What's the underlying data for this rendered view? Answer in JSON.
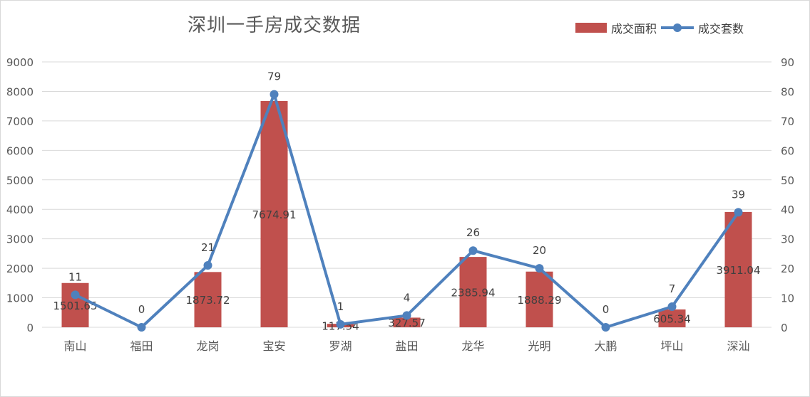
{
  "chart_data": {
    "type": "bar+line",
    "title": "深圳一手房成交数据",
    "categories": [
      "南山",
      "福田",
      "龙岗",
      "宝安",
      "罗湖",
      "盐田",
      "龙华",
      "光明",
      "大鹏",
      "坪山",
      "深汕"
    ],
    "series": [
      {
        "name": "成交面积",
        "type": "bar",
        "axis": "left",
        "color": "#c0504d",
        "values": [
          1501.65,
          0,
          1873.72,
          7674.91,
          117.54,
          327.57,
          2385.94,
          1888.29,
          0,
          605.34,
          3911.04
        ],
        "labels": [
          "1501.65",
          "0",
          "1873.72",
          "7674.91",
          "117.54",
          "327.57",
          "2385.94",
          "1888.29",
          "0",
          "605.34",
          "3911.04"
        ]
      },
      {
        "name": "成交套数",
        "type": "line",
        "axis": "right",
        "color": "#4f81bd",
        "values": [
          11,
          0,
          21,
          79,
          1,
          4,
          26,
          20,
          0,
          7,
          39
        ],
        "labels": [
          "11",
          "0",
          "21",
          "79",
          "1",
          "4",
          "26",
          "20",
          "0",
          "7",
          "39"
        ]
      }
    ],
    "y_left": {
      "min": 0,
      "max": 9000,
      "ticks": [
        "0",
        "1000",
        "2000",
        "3000",
        "4000",
        "5000",
        "6000",
        "7000",
        "8000",
        "9000"
      ]
    },
    "y_right": {
      "min": 0,
      "max": 90,
      "ticks": [
        "0",
        "10",
        "20",
        "30",
        "40",
        "50",
        "60",
        "70",
        "80",
        "90"
      ]
    },
    "grid": true,
    "legend_position": "top-right"
  }
}
